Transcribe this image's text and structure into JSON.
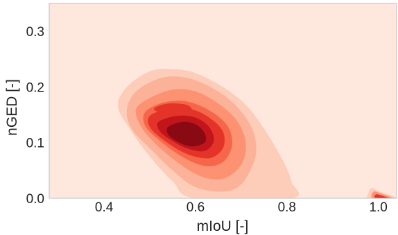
{
  "chart_data": {
    "type": "heatmap",
    "style": "filled density contour (kde)",
    "title": "",
    "xlabel": "mIoU [-]",
    "ylabel": "nGED [-]",
    "xlim": [
      0.28,
      1.04
    ],
    "ylim": [
      0.0,
      0.35
    ],
    "x_ticks": [
      0.4,
      0.6,
      0.8,
      1.0
    ],
    "x_tick_labels": [
      "0.4",
      "0.6",
      "0.8",
      "1.0"
    ],
    "y_ticks": [
      0.0,
      0.1,
      0.2,
      0.3
    ],
    "y_tick_labels": [
      "0.0",
      "0.1",
      "0.2",
      "0.3"
    ],
    "grid": false,
    "legend": "none",
    "colors": {
      "background": "#fee8de",
      "levels": [
        "#fdcdb9",
        "#fcb199",
        "#fc9272",
        "#f5664b",
        "#e43328",
        "#c1151b",
        "#8a0a13"
      ]
    },
    "contours": [
      {
        "level": 1,
        "points": [
          [
            0.43,
            0.165
          ],
          [
            0.45,
            0.2
          ],
          [
            0.5,
            0.228
          ],
          [
            0.55,
            0.232
          ],
          [
            0.6,
            0.225
          ],
          [
            0.66,
            0.2
          ],
          [
            0.71,
            0.168
          ],
          [
            0.75,
            0.125
          ],
          [
            0.79,
            0.07
          ],
          [
            0.81,
            0.03
          ],
          [
            0.81,
            0.0
          ],
          [
            0.6,
            0.0
          ],
          [
            0.55,
            0.03
          ],
          [
            0.5,
            0.075
          ],
          [
            0.46,
            0.12
          ]
        ]
      },
      {
        "level": 2,
        "points": [
          [
            0.45,
            0.16
          ],
          [
            0.47,
            0.192
          ],
          [
            0.52,
            0.215
          ],
          [
            0.57,
            0.218
          ],
          [
            0.62,
            0.205
          ],
          [
            0.67,
            0.18
          ],
          [
            0.71,
            0.145
          ],
          [
            0.73,
            0.11
          ],
          [
            0.73,
            0.07
          ],
          [
            0.7,
            0.025
          ],
          [
            0.66,
            0.012
          ],
          [
            0.6,
            0.02
          ],
          [
            0.55,
            0.05
          ],
          [
            0.5,
            0.09
          ],
          [
            0.46,
            0.125
          ]
        ]
      },
      {
        "level": 3,
        "points": [
          [
            0.47,
            0.16
          ],
          [
            0.5,
            0.18
          ],
          [
            0.55,
            0.195
          ],
          [
            0.6,
            0.192
          ],
          [
            0.65,
            0.17
          ],
          [
            0.69,
            0.14
          ],
          [
            0.71,
            0.1
          ],
          [
            0.7,
            0.06
          ],
          [
            0.66,
            0.035
          ],
          [
            0.61,
            0.04
          ],
          [
            0.56,
            0.065
          ],
          [
            0.51,
            0.1
          ],
          [
            0.48,
            0.13
          ]
        ]
      },
      {
        "level": 4,
        "points": [
          [
            0.49,
            0.155
          ],
          [
            0.53,
            0.172
          ],
          [
            0.58,
            0.174
          ],
          [
            0.63,
            0.158
          ],
          [
            0.67,
            0.13
          ],
          [
            0.68,
            0.095
          ],
          [
            0.66,
            0.065
          ],
          [
            0.62,
            0.058
          ],
          [
            0.57,
            0.075
          ],
          [
            0.52,
            0.105
          ],
          [
            0.49,
            0.13
          ]
        ]
      },
      {
        "level": 5,
        "points": [
          [
            0.5,
            0.148
          ],
          [
            0.54,
            0.16
          ],
          [
            0.59,
            0.16
          ],
          [
            0.63,
            0.145
          ],
          [
            0.66,
            0.12
          ],
          [
            0.66,
            0.09
          ],
          [
            0.63,
            0.072
          ],
          [
            0.58,
            0.08
          ],
          [
            0.53,
            0.105
          ],
          [
            0.5,
            0.128
          ]
        ]
      },
      {
        "level": 5,
        "points": [
          [
            0.51,
            0.162
          ],
          [
            0.54,
            0.17
          ],
          [
            0.58,
            0.168
          ],
          [
            0.59,
            0.158
          ],
          [
            0.55,
            0.155
          ],
          [
            0.52,
            0.155
          ]
        ]
      },
      {
        "level": 6,
        "points": [
          [
            0.52,
            0.138
          ],
          [
            0.56,
            0.148
          ],
          [
            0.6,
            0.145
          ],
          [
            0.63,
            0.128
          ],
          [
            0.64,
            0.103
          ],
          [
            0.62,
            0.085
          ],
          [
            0.58,
            0.09
          ],
          [
            0.54,
            0.108
          ],
          [
            0.52,
            0.123
          ]
        ]
      },
      {
        "level": 7,
        "points": [
          [
            0.54,
            0.128
          ],
          [
            0.57,
            0.137
          ],
          [
            0.6,
            0.133
          ],
          [
            0.62,
            0.117
          ],
          [
            0.62,
            0.1
          ],
          [
            0.59,
            0.093
          ],
          [
            0.56,
            0.102
          ],
          [
            0.54,
            0.115
          ]
        ]
      },
      {
        "level": 1,
        "points": [
          [
            0.985,
            0.018
          ],
          [
            1.005,
            0.012
          ],
          [
            1.035,
            0.003
          ],
          [
            1.04,
            0.0
          ],
          [
            0.98,
            0.0
          ],
          [
            0.978,
            0.008
          ]
        ]
      },
      {
        "level": 3,
        "points": [
          [
            0.99,
            0.012
          ],
          [
            1.008,
            0.008
          ],
          [
            1.03,
            0.0
          ],
          [
            0.988,
            0.0
          ]
        ]
      },
      {
        "level": 5,
        "points": [
          [
            0.995,
            0.007
          ],
          [
            1.01,
            0.004
          ],
          [
            1.022,
            0.0
          ],
          [
            0.994,
            0.0
          ]
        ]
      }
    ]
  }
}
